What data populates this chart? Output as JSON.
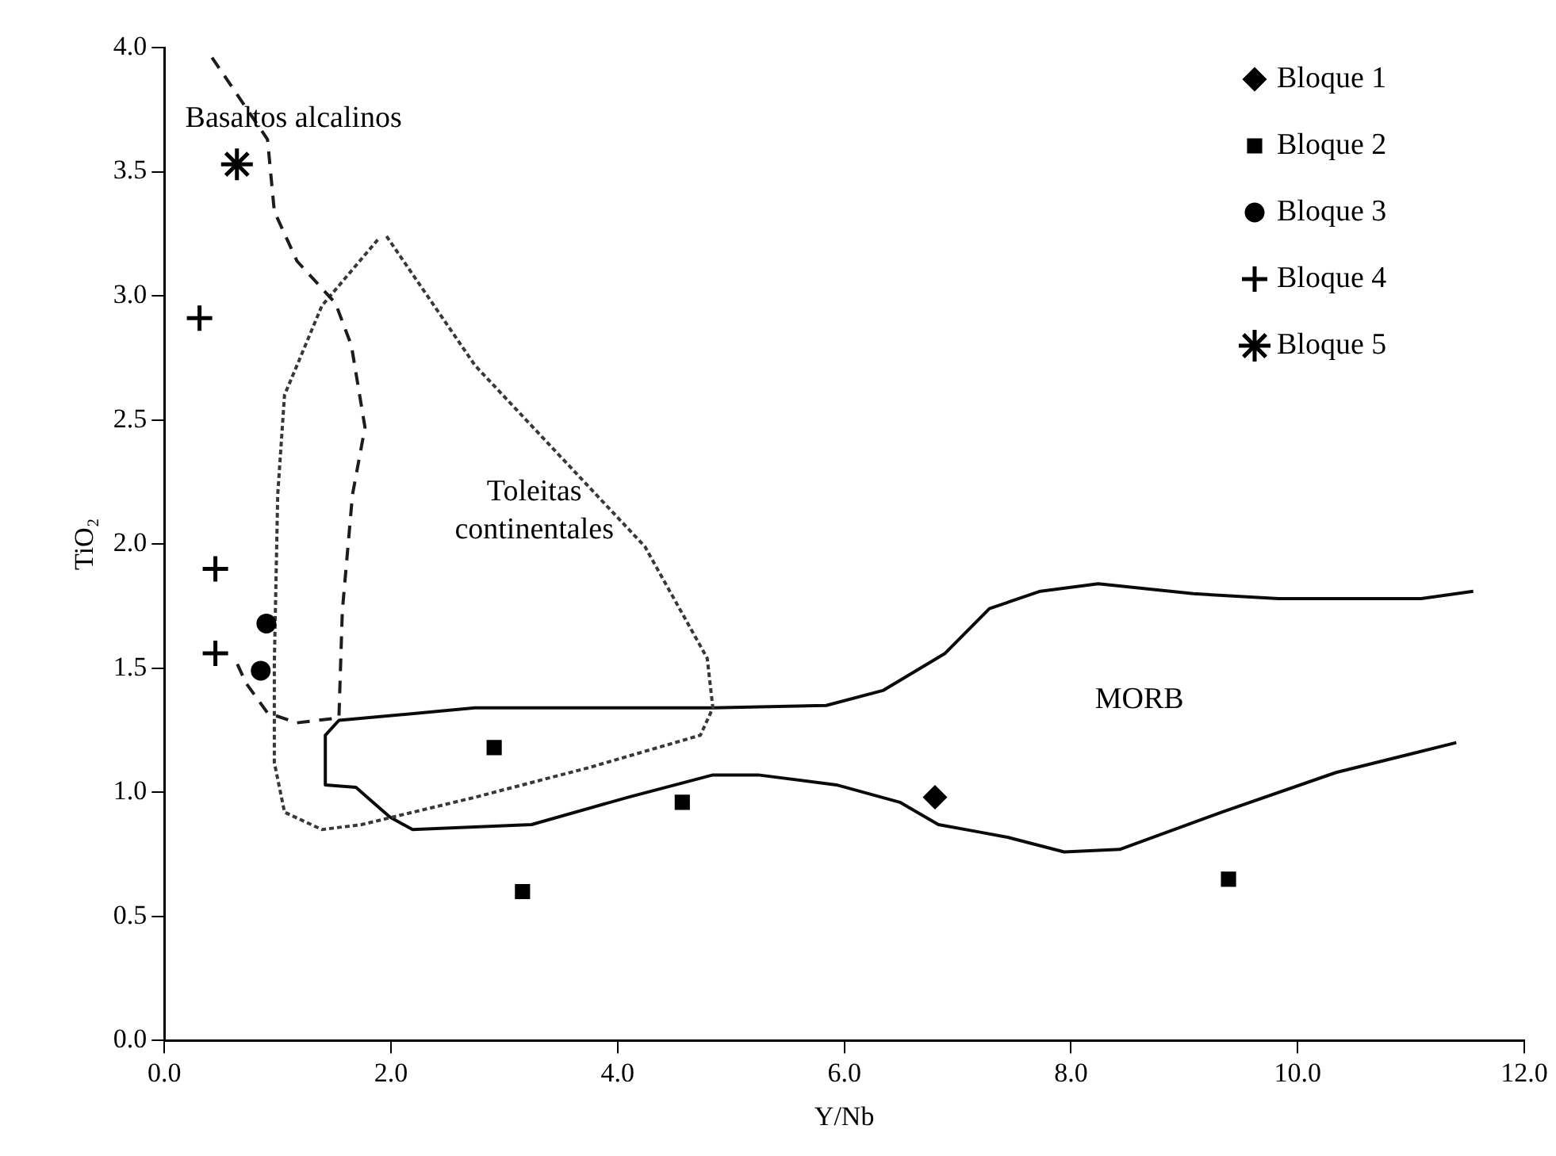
{
  "chart_data": {
    "type": "scatter",
    "xlabel": "Y/Nb",
    "ylabel": "TiO₂",
    "xlim": [
      0,
      12
    ],
    "ylim": [
      0,
      4
    ],
    "xticks": [
      {
        "value": 0,
        "label": "0.0"
      },
      {
        "value": 2,
        "label": "2.0"
      },
      {
        "value": 4,
        "label": "4.0"
      },
      {
        "value": 6,
        "label": "6.0"
      },
      {
        "value": 8,
        "label": "8.0"
      },
      {
        "value": 10,
        "label": "10.0"
      },
      {
        "value": 12,
        "label": "12.0"
      }
    ],
    "yticks": [
      {
        "value": 0,
        "label": "0.0"
      },
      {
        "value": 0.5,
        "label": "0.5"
      },
      {
        "value": 1,
        "label": "1.0"
      },
      {
        "value": 1.5,
        "label": "1.5"
      },
      {
        "value": 2,
        "label": "2.0"
      },
      {
        "value": 2.5,
        "label": "2.5"
      },
      {
        "value": 3,
        "label": "3.0"
      },
      {
        "value": 3.5,
        "label": "3.5"
      },
      {
        "value": 4,
        "label": "4.0"
      }
    ],
    "grid": false,
    "legend": "top right",
    "series": [
      {
        "name": "Bloque 1",
        "color": "#000000",
        "marker": "diamond",
        "x": [
          6.8
        ],
        "values": [
          0.98
        ]
      },
      {
        "name": "Bloque 2",
        "color": "#000000",
        "marker": "square",
        "x": [
          2.91,
          3.16,
          4.57,
          9.39
        ],
        "values": [
          1.18,
          0.6,
          0.96,
          0.65
        ]
      },
      {
        "name": "Bloque 3",
        "color": "#000000",
        "marker": "circle",
        "x": [
          0.9,
          0.85
        ],
        "values": [
          1.68,
          1.49
        ]
      },
      {
        "name": "Bloque 4",
        "color": "#000000",
        "marker": "cross",
        "x": [
          0.31,
          0.45,
          0.45
        ],
        "values": [
          2.91,
          1.9,
          1.56
        ]
      },
      {
        "name": "Bloque 5",
        "color": "#000000",
        "x": [
          0.64
        ],
        "values": [
          3.53
        ]
      },
      {
        "type": "line",
        "color": "#1c1c1c",
        "line_style": "dashed",
        "x": [
          0.42,
          0.91,
          0.97,
          1.17,
          1.51,
          1.65,
          1.77,
          1.66,
          1.57,
          1.54,
          1.17,
          0.91,
          0.72,
          0.64
        ],
        "values": [
          3.96,
          3.63,
          3.34,
          3.14,
          2.97,
          2.8,
          2.47,
          2.2,
          1.73,
          1.3,
          1.28,
          1.32,
          1.44,
          1.52
        ]
      },
      {
        "type": "line",
        "color": "#383838",
        "line_style": "dotted",
        "x": [
          1.96,
          2.74,
          4.24,
          4.79,
          4.84,
          4.73,
          3.75,
          2.74,
          1.74,
          1.39,
          1.06,
          0.97,
          0.97,
          1.0,
          1.06,
          1.39,
          1.89
        ],
        "values": [
          3.24,
          2.72,
          1.99,
          1.54,
          1.34,
          1.23,
          1.1,
          0.98,
          0.87,
          0.85,
          0.92,
          1.12,
          1.52,
          2.2,
          2.6,
          2.96,
          3.23
        ]
      },
      {
        "type": "line",
        "color": "#0a0a0a",
        "line_style": "solid",
        "x": [
          11.55,
          11.09,
          9.83,
          9.08,
          8.24,
          7.73,
          7.28,
          6.89,
          6.34,
          5.84,
          4.84,
          2.74,
          1.54,
          1.42,
          1.42,
          1.69,
          1.99,
          2.19,
          3.24,
          4.09,
          4.84,
          5.24,
          5.93,
          6.49,
          6.83,
          7.19,
          7.43,
          7.94,
          8.43,
          9.33,
          10.34,
          11.4
        ],
        "values": [
          1.81,
          1.78,
          1.78,
          1.8,
          1.84,
          1.81,
          1.74,
          1.56,
          1.41,
          1.35,
          1.34,
          1.34,
          1.29,
          1.23,
          1.03,
          1.02,
          0.9,
          0.85,
          0.87,
          0.98,
          1.07,
          1.07,
          1.03,
          0.96,
          0.87,
          0.84,
          0.82,
          0.76,
          0.77,
          0.92,
          1.08,
          1.2
        ]
      }
    ],
    "annotations": [
      "Basaltos alcalinos",
      "Toleitas continentales",
      "MORB"
    ]
  }
}
